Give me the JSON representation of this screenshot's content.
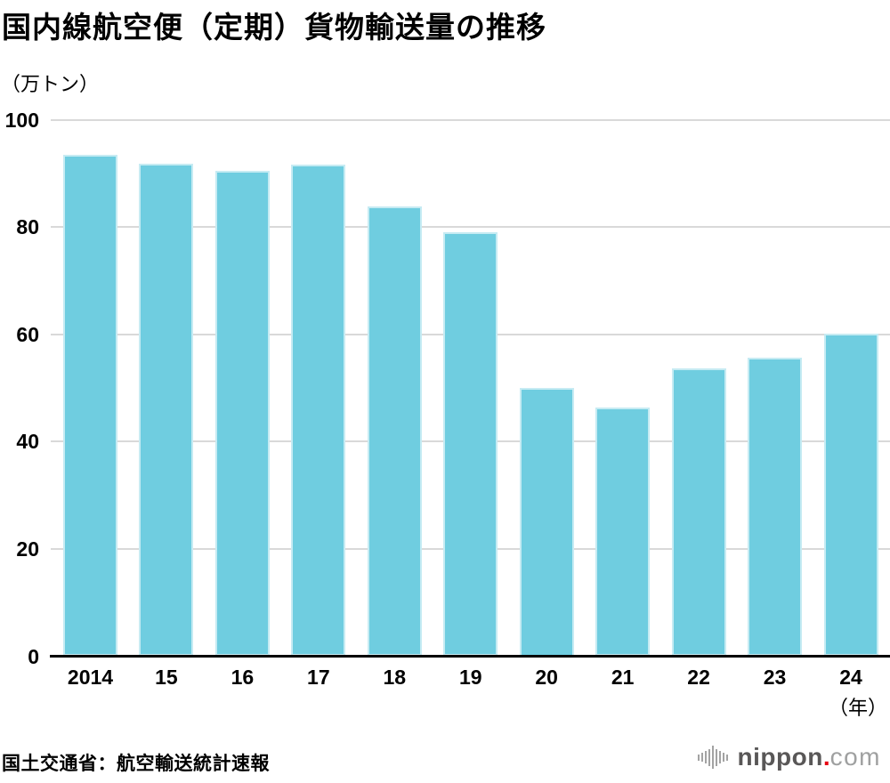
{
  "header": {
    "title": "国内線航空便（定期）貨物輸送量の推移",
    "unit_label": "（万トン）"
  },
  "footer": {
    "source": "国土交通省：航空輸送統計速報"
  },
  "logo": {
    "name": "nippon",
    "dot": ".",
    "tld": "com"
  },
  "colors": {
    "bar_fill": "#6fcde0",
    "bar_border": "#c6ebf3",
    "gridline": "#d9d9d9",
    "axis": "#000000",
    "logo_dark_gray": "#595757",
    "logo_red": "#e60012",
    "logo_light_gray": "#9fa0a0"
  },
  "chart_data": {
    "type": "bar",
    "title": "国内線航空便（定期）貨物輸送量の推移",
    "ylabel": "（万トン）",
    "xlabel": "（年）",
    "categories": [
      "2014",
      "15",
      "16",
      "17",
      "18",
      "19",
      "20",
      "21",
      "22",
      "23",
      "24"
    ],
    "values": [
      93.5,
      91.8,
      90.4,
      91.6,
      83.9,
      79.1,
      50.0,
      46.3,
      53.7,
      55.7,
      60.1
    ],
    "ylim": [
      0,
      100
    ],
    "yticks": [
      0,
      20,
      40,
      60,
      80,
      100
    ],
    "grid": true,
    "legend_position": "none"
  }
}
